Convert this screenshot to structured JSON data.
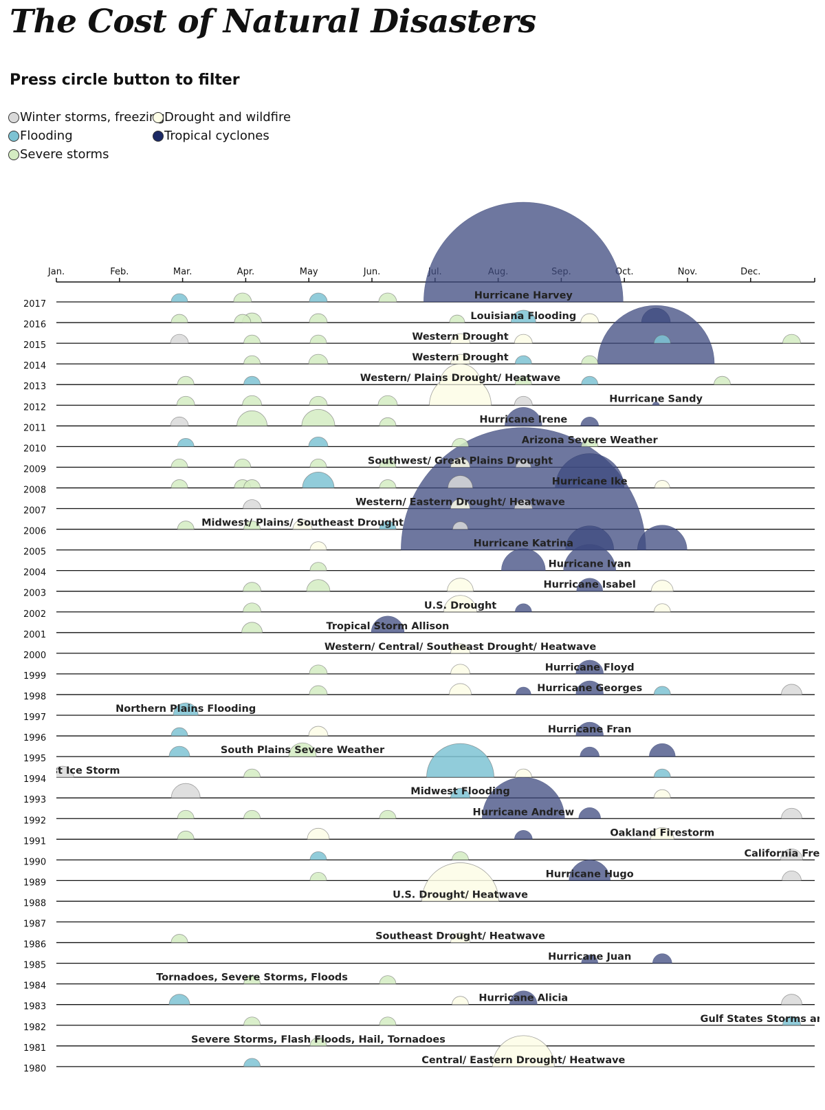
{
  "page": {
    "title": "The Cost of Natural Disasters",
    "subtitle": "Press circle button to filter"
  },
  "legend": [
    {
      "label": "Winter storms, freezing",
      "color": "#d9d9d9"
    },
    {
      "label": "Drought and wildfire",
      "color": "#fdfde6"
    },
    {
      "label": "Flooding",
      "color": "#7ec3d3"
    },
    {
      "label": "Tropical cyclones",
      "color": "#1c2a65"
    },
    {
      "label": "Severe storms",
      "color": "#d4ecc2"
    }
  ],
  "colors": {
    "winter": "#d9d9d9",
    "drought": "#fdfde6",
    "flooding": "#7ec3d3",
    "cyclone": "#3d4a7f",
    "severe": "#d4ecc2"
  },
  "chart_data": {
    "type": "scatter",
    "title": "The Cost of Natural Disasters",
    "x_axis_ticks": [
      "Jan.",
      "Feb.",
      "Mar.",
      "Apr.",
      "May",
      "Jun.",
      "Jul.",
      "Aug.",
      "Sep.",
      "Oct.",
      "Nov.",
      "Dec."
    ],
    "years": [
      2017,
      2016,
      2015,
      2014,
      2013,
      2012,
      2011,
      2010,
      2009,
      2008,
      2007,
      2006,
      2005,
      2004,
      2003,
      2002,
      2001,
      2000,
      1999,
      1998,
      1997,
      1996,
      1995,
      1994,
      1993,
      1992,
      1991,
      1990,
      1989,
      1988,
      1987,
      1986,
      1985,
      1984,
      1983,
      1982,
      1981,
      1980
    ],
    "events": [
      {
        "year": 2017,
        "month": 7.4,
        "type": "cyclone",
        "size": 145,
        "label": "Hurricane Harvey"
      },
      {
        "year": 2017,
        "month": 1.95,
        "type": "flooding",
        "size": 12
      },
      {
        "year": 2017,
        "month": 2.95,
        "type": "severe",
        "size": 13
      },
      {
        "year": 2017,
        "month": 4.15,
        "type": "flooding",
        "size": 13
      },
      {
        "year": 2017,
        "month": 5.25,
        "type": "severe",
        "size": 13
      },
      {
        "year": 2016,
        "month": 7.4,
        "type": "flooding",
        "size": 18,
        "label": "Louisiana Flooding"
      },
      {
        "year": 2016,
        "month": 1.95,
        "type": "severe",
        "size": 12
      },
      {
        "year": 2016,
        "month": 2.95,
        "type": "severe",
        "size": 12
      },
      {
        "year": 2016,
        "month": 3.1,
        "type": "severe",
        "size": 14
      },
      {
        "year": 2016,
        "month": 4.15,
        "type": "severe",
        "size": 13
      },
      {
        "year": 2016,
        "month": 6.35,
        "type": "severe",
        "size": 11
      },
      {
        "year": 2016,
        "month": 8.45,
        "type": "drought",
        "size": 13
      },
      {
        "year": 2016,
        "month": 9.5,
        "type": "cyclone",
        "size": 21
      },
      {
        "year": 2015,
        "month": 6.4,
        "type": "drought",
        "size": 14,
        "label": "Western Drought"
      },
      {
        "year": 2015,
        "month": 1.95,
        "type": "winter",
        "size": 13
      },
      {
        "year": 2015,
        "month": 3.1,
        "type": "severe",
        "size": 12
      },
      {
        "year": 2015,
        "month": 4.15,
        "type": "severe",
        "size": 12
      },
      {
        "year": 2015,
        "month": 7.4,
        "type": "drought",
        "size": 13
      },
      {
        "year": 2015,
        "month": 9.6,
        "type": "flooding",
        "size": 12
      },
      {
        "year": 2015,
        "month": 11.65,
        "type": "severe",
        "size": 13
      },
      {
        "year": 2014,
        "month": 6.4,
        "type": "drought",
        "size": 14,
        "label": "Western Drought"
      },
      {
        "year": 2014,
        "month": 3.1,
        "type": "severe",
        "size": 12
      },
      {
        "year": 2014,
        "month": 4.15,
        "type": "severe",
        "size": 14
      },
      {
        "year": 2014,
        "month": 7.4,
        "type": "flooding",
        "size": 12
      },
      {
        "year": 2014,
        "month": 8.45,
        "type": "severe",
        "size": 12
      },
      {
        "year": 2014,
        "month": 9.5,
        "type": "cyclone",
        "size": 85
      },
      {
        "year": 2013,
        "month": 6.4,
        "type": "drought",
        "size": 30,
        "label": "Western/ Plains Drought/ Heatwave"
      },
      {
        "year": 2013,
        "month": 2.05,
        "type": "severe",
        "size": 12
      },
      {
        "year": 2013,
        "month": 3.1,
        "type": "flooding",
        "size": 12
      },
      {
        "year": 2013,
        "month": 7.4,
        "type": "severe",
        "size": 12
      },
      {
        "year": 2013,
        "month": 8.45,
        "type": "flooding",
        "size": 12
      },
      {
        "year": 2013,
        "month": 10.55,
        "type": "severe",
        "size": 12
      },
      {
        "year": 2012,
        "month": 6.4,
        "type": "drought",
        "size": 45
      },
      {
        "year": 2012,
        "month": 9.5,
        "type": "cyclone",
        "size": 5,
        "label": "Hurricane Sandy"
      },
      {
        "year": 2012,
        "month": 2.05,
        "type": "severe",
        "size": 13
      },
      {
        "year": 2012,
        "month": 3.1,
        "type": "severe",
        "size": 14
      },
      {
        "year": 2012,
        "month": 4.15,
        "type": "severe",
        "size": 13
      },
      {
        "year": 2012,
        "month": 5.25,
        "type": "severe",
        "size": 14
      },
      {
        "year": 2012,
        "month": 7.4,
        "type": "winter",
        "size": 13
      },
      {
        "year": 2011,
        "month": 7.4,
        "type": "cyclone",
        "size": 27,
        "label": "Hurricane Irene"
      },
      {
        "year": 2011,
        "month": 1.95,
        "type": "winter",
        "size": 13
      },
      {
        "year": 2011,
        "month": 3.1,
        "type": "severe",
        "size": 22
      },
      {
        "year": 2011,
        "month": 4.15,
        "type": "severe",
        "size": 24
      },
      {
        "year": 2011,
        "month": 5.25,
        "type": "severe",
        "size": 12
      },
      {
        "year": 2011,
        "month": 8.45,
        "type": "cyclone",
        "size": 13
      },
      {
        "year": 2010,
        "month": 8.45,
        "type": "severe",
        "size": 12,
        "label": "Arizona Severe Weather"
      },
      {
        "year": 2010,
        "month": 2.05,
        "type": "flooding",
        "size": 12
      },
      {
        "year": 2010,
        "month": 4.15,
        "type": "flooding",
        "size": 14
      },
      {
        "year": 2010,
        "month": 6.4,
        "type": "severe",
        "size": 12
      },
      {
        "year": 2009,
        "month": 6.4,
        "type": "drought",
        "size": 14,
        "label": "Southwest/ Great Plains Drought"
      },
      {
        "year": 2009,
        "month": 1.95,
        "type": "severe",
        "size": 12
      },
      {
        "year": 2009,
        "month": 2.95,
        "type": "severe",
        "size": 12
      },
      {
        "year": 2009,
        "month": 4.15,
        "type": "severe",
        "size": 12
      },
      {
        "year": 2009,
        "month": 5.25,
        "type": "severe",
        "size": 12
      },
      {
        "year": 2009,
        "month": 7.4,
        "type": "winter",
        "size": 11
      },
      {
        "year": 2008,
        "month": 8.45,
        "type": "cyclone",
        "size": 50,
        "label": "Hurricane Ike"
      },
      {
        "year": 2008,
        "month": 1.95,
        "type": "severe",
        "size": 12
      },
      {
        "year": 2008,
        "month": 2.95,
        "type": "severe",
        "size": 12
      },
      {
        "year": 2008,
        "month": 3.1,
        "type": "severe",
        "size": 12
      },
      {
        "year": 2008,
        "month": 4.15,
        "type": "flooding",
        "size": 23
      },
      {
        "year": 2008,
        "month": 5.25,
        "type": "severe",
        "size": 12
      },
      {
        "year": 2008,
        "month": 6.4,
        "type": "winter",
        "size": 18
      },
      {
        "year": 2008,
        "month": 9.6,
        "type": "drought",
        "size": 11
      },
      {
        "year": 2007,
        "month": 6.4,
        "type": "drought",
        "size": 14,
        "label": "Western/ Eastern Drought/ Heatwave"
      },
      {
        "year": 2007,
        "month": 3.1,
        "type": "winter",
        "size": 13
      },
      {
        "year": 2007,
        "month": 7.4,
        "type": "winter",
        "size": 13
      },
      {
        "year": 2006,
        "month": 3.9,
        "type": "drought",
        "size": 14,
        "label": "Midwest/ Plains/ Southeast Drought"
      },
      {
        "year": 2006,
        "month": 2.05,
        "type": "severe",
        "size": 12
      },
      {
        "year": 2006,
        "month": 3.1,
        "type": "severe",
        "size": 12
      },
      {
        "year": 2006,
        "month": 5.25,
        "type": "flooding",
        "size": 12
      },
      {
        "year": 2006,
        "month": 6.4,
        "type": "winter",
        "size": 11
      },
      {
        "year": 2005,
        "month": 7.4,
        "type": "cyclone",
        "size": 178,
        "label": "Hurricane Katrina"
      },
      {
        "year": 2005,
        "month": 4.15,
        "type": "drought",
        "size": 12
      },
      {
        "year": 2005,
        "month": 8.45,
        "type": "cyclone",
        "size": 35
      },
      {
        "year": 2005,
        "month": 9.6,
        "type": "cyclone",
        "size": 36
      },
      {
        "year": 2004,
        "month": 8.45,
        "type": "cyclone",
        "size": 38,
        "label": "Hurricane Ivan"
      },
      {
        "year": 2004,
        "month": 4.15,
        "type": "severe",
        "size": 12
      },
      {
        "year": 2004,
        "month": 7.4,
        "type": "cyclone",
        "size": 32
      },
      {
        "year": 2003,
        "month": 8.45,
        "type": "cyclone",
        "size": 19,
        "label": "Hurricane Isabel"
      },
      {
        "year": 2003,
        "month": 3.1,
        "type": "severe",
        "size": 13
      },
      {
        "year": 2003,
        "month": 4.15,
        "type": "severe",
        "size": 17
      },
      {
        "year": 2003,
        "month": 6.4,
        "type": "drought",
        "size": 19
      },
      {
        "year": 2003,
        "month": 9.6,
        "type": "drought",
        "size": 16
      },
      {
        "year": 2002,
        "month": 6.4,
        "type": "drought",
        "size": 24,
        "label": "U.S. Drought"
      },
      {
        "year": 2002,
        "month": 3.1,
        "type": "severe",
        "size": 13
      },
      {
        "year": 2002,
        "month": 7.4,
        "type": "cyclone",
        "size": 12
      },
      {
        "year": 2002,
        "month": 9.6,
        "type": "drought",
        "size": 12
      },
      {
        "year": 2001,
        "month": 5.25,
        "type": "cyclone",
        "size": 24,
        "label": "Tropical Storm Allison"
      },
      {
        "year": 2001,
        "month": 3.1,
        "type": "severe",
        "size": 15
      },
      {
        "year": 2000,
        "month": 6.4,
        "type": "drought",
        "size": 14,
        "label": "Western/ Central/ Southeast Drought/ Heatwave"
      },
      {
        "year": 1999,
        "month": 8.45,
        "type": "cyclone",
        "size": 20,
        "label": "Hurricane Floyd"
      },
      {
        "year": 1999,
        "month": 4.15,
        "type": "severe",
        "size": 13
      },
      {
        "year": 1999,
        "month": 6.4,
        "type": "drought",
        "size": 14
      },
      {
        "year": 1998,
        "month": 8.45,
        "type": "cyclone",
        "size": 20,
        "label": "Hurricane Georges"
      },
      {
        "year": 1998,
        "month": 4.15,
        "type": "severe",
        "size": 13
      },
      {
        "year": 1998,
        "month": 6.4,
        "type": "drought",
        "size": 16
      },
      {
        "year": 1998,
        "month": 7.4,
        "type": "cyclone",
        "size": 11
      },
      {
        "year": 1998,
        "month": 9.6,
        "type": "flooding",
        "size": 12
      },
      {
        "year": 1998,
        "month": 11.65,
        "type": "winter",
        "size": 15
      },
      {
        "year": 1997,
        "month": 2.05,
        "type": "flooding",
        "size": 18,
        "label": "Northern Plains Flooding"
      },
      {
        "year": 1996,
        "month": 8.45,
        "type": "cyclone",
        "size": 20,
        "label": "Hurricane Fran"
      },
      {
        "year": 1996,
        "month": 1.95,
        "type": "flooding",
        "size": 12
      },
      {
        "year": 1996,
        "month": 4.15,
        "type": "drought",
        "size": 14
      },
      {
        "year": 1995,
        "month": 3.9,
        "type": "severe",
        "size": 20,
        "label": "South Plains Severe Weather"
      },
      {
        "year": 1995,
        "month": 1.95,
        "type": "flooding",
        "size": 15
      },
      {
        "year": 1995,
        "month": 8.45,
        "type": "cyclone",
        "size": 14
      },
      {
        "year": 1995,
        "month": 9.6,
        "type": "cyclone",
        "size": 19
      },
      {
        "year": 1994,
        "month": 0.1,
        "type": "winter",
        "size": 16,
        "label": "Southeast Ice Storm"
      },
      {
        "year": 1994,
        "month": 3.1,
        "type": "severe",
        "size": 12
      },
      {
        "year": 1994,
        "month": 6.4,
        "type": "flooding",
        "size": 49
      },
      {
        "year": 1994,
        "month": 7.4,
        "type": "drought",
        "size": 12
      },
      {
        "year": 1994,
        "month": 9.6,
        "type": "flooding",
        "size": 12
      },
      {
        "year": 1993,
        "month": 6.4,
        "type": "flooding",
        "size": 14,
        "label": "Midwest Flooding"
      },
      {
        "year": 1993,
        "month": 2.05,
        "type": "winter",
        "size": 21
      },
      {
        "year": 1993,
        "month": 9.6,
        "type": "drought",
        "size": 12
      },
      {
        "year": 1992,
        "month": 7.4,
        "type": "cyclone",
        "size": 60,
        "label": "Hurricane Andrew"
      },
      {
        "year": 1992,
        "month": 2.05,
        "type": "severe",
        "size": 12
      },
      {
        "year": 1992,
        "month": 3.1,
        "type": "severe",
        "size": 12
      },
      {
        "year": 1992,
        "month": 5.25,
        "type": "severe",
        "size": 12
      },
      {
        "year": 1992,
        "month": 8.45,
        "type": "cyclone",
        "size": 16
      },
      {
        "year": 1992,
        "month": 11.65,
        "type": "winter",
        "size": 15
      },
      {
        "year": 1991,
        "month": 9.6,
        "type": "drought",
        "size": 17,
        "label": "Oakland Firestorm"
      },
      {
        "year": 1991,
        "month": 2.05,
        "type": "severe",
        "size": 12
      },
      {
        "year": 1991,
        "month": 4.15,
        "type": "drought",
        "size": 16
      },
      {
        "year": 1991,
        "month": 7.4,
        "type": "cyclone",
        "size": 13
      },
      {
        "year": 1990,
        "month": 11.65,
        "type": "winter",
        "size": 16,
        "label": "California Freeze"
      },
      {
        "year": 1990,
        "month": 4.15,
        "type": "flooding",
        "size": 12
      },
      {
        "year": 1990,
        "month": 6.4,
        "type": "severe",
        "size": 12
      },
      {
        "year": 1989,
        "month": 8.45,
        "type": "cyclone",
        "size": 30,
        "label": "Hurricane Hugo"
      },
      {
        "year": 1989,
        "month": 4.15,
        "type": "severe",
        "size": 12
      },
      {
        "year": 1989,
        "month": 11.65,
        "type": "winter",
        "size": 14
      },
      {
        "year": 1988,
        "month": 6.4,
        "type": "drought",
        "size": 56,
        "label": "U.S. Drought/ Heatwave"
      },
      {
        "year": 1986,
        "month": 6.4,
        "type": "drought",
        "size": 14,
        "label": "Southeast Drought/ Heatwave"
      },
      {
        "year": 1986,
        "month": 1.95,
        "type": "severe",
        "size": 12
      },
      {
        "year": 1985,
        "month": 8.45,
        "type": "cyclone",
        "size": 12,
        "label": "Hurricane Juan"
      },
      {
        "year": 1985,
        "month": 9.6,
        "type": "cyclone",
        "size": 14
      },
      {
        "year": 1984,
        "month": 3.1,
        "type": "severe",
        "size": 12,
        "label": "Tornadoes, Severe Storms, Floods"
      },
      {
        "year": 1984,
        "month": 5.25,
        "type": "severe",
        "size": 12
      },
      {
        "year": 1983,
        "month": 7.4,
        "type": "cyclone",
        "size": 20,
        "label": "Hurricane Alicia"
      },
      {
        "year": 1983,
        "month": 1.95,
        "type": "flooding",
        "size": 15
      },
      {
        "year": 1983,
        "month": 6.4,
        "type": "drought",
        "size": 12
      },
      {
        "year": 1983,
        "month": 11.65,
        "type": "winter",
        "size": 15
      },
      {
        "year": 1982,
        "month": 11.65,
        "type": "flooding",
        "size": 13,
        "label": "Gulf States Storms and Flooding"
      },
      {
        "year": 1982,
        "month": 3.1,
        "type": "severe",
        "size": 12
      },
      {
        "year": 1982,
        "month": 5.25,
        "type": "severe",
        "size": 12
      },
      {
        "year": 1981,
        "month": 4.15,
        "type": "severe",
        "size": 12,
        "label": "Severe Storms, Flash Floods, Hail, Tornadoes"
      },
      {
        "year": 1980,
        "month": 7.4,
        "type": "drought",
        "size": 45,
        "label": "Central/ Eastern Drought/ Heatwave"
      },
      {
        "year": 1980,
        "month": 3.1,
        "type": "flooding",
        "size": 12
      }
    ]
  }
}
